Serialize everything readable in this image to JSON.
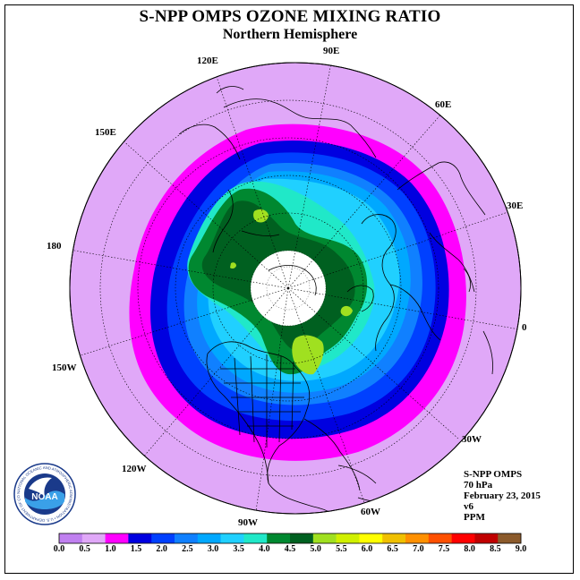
{
  "title": "S-NPP OMPS OZONE MIXING RATIO",
  "subtitle": "Northern Hemisphere",
  "longitude_labels": {
    "e90": "90E",
    "e60": "60E",
    "e30": "30E",
    "zero": "0",
    "w30": "30W",
    "w60": "60W",
    "w90": "90W",
    "w120": "120W",
    "w150": "150W",
    "d180": "180",
    "e150": "150E",
    "e120": "120E"
  },
  "info": {
    "instrument": "S-NPP OMPS",
    "level": "70 hPa",
    "date": "February 23, 2015",
    "version": "v6",
    "unit": "PPM"
  },
  "logo": {
    "text": "NOAA",
    "ring_text": "NATIONAL OCEANIC AND ATMOSPHERIC ADMINISTRATION • U.S. DEPARTMENT OF COMMERCE"
  },
  "colorbar": {
    "ticks": [
      "0.0",
      "0.5",
      "1.0",
      "1.5",
      "2.0",
      "2.5",
      "3.0",
      "3.5",
      "4.0",
      "4.5",
      "5.0",
      "5.5",
      "6.0",
      "6.5",
      "7.0",
      "7.5",
      "8.0",
      "8.5",
      "9.0"
    ],
    "colors": [
      "#c080f0",
      "#e0a8f8",
      "#ff00ff",
      "#0000e0",
      "#0040ff",
      "#1080ff",
      "#00a8ff",
      "#20d0ff",
      "#20e8c8",
      "#008830",
      "#006020",
      "#a0e020",
      "#d0f000",
      "#ffff00",
      "#f0c000",
      "#ff9000",
      "#ff5000",
      "#ff0000",
      "#c00000",
      "#8b5a2b"
    ]
  },
  "map": {
    "outside_color": "#e0a8f8",
    "missing_color": "#ffffff",
    "contour_layers": [
      {
        "level": "1.0",
        "color": "#ff00ff"
      },
      {
        "level": "1.5",
        "color": "#0000e0"
      },
      {
        "level": "2.0",
        "color": "#0040ff"
      },
      {
        "level": "2.5",
        "color": "#1080ff"
      },
      {
        "level": "3.0",
        "color": "#00a8ff"
      },
      {
        "level": "3.5",
        "color": "#20d0ff"
      },
      {
        "level": "4.0",
        "color": "#20e8c8"
      },
      {
        "level": "4.5",
        "color": "#008830"
      },
      {
        "level": "5.0",
        "color": "#006020"
      }
    ]
  }
}
